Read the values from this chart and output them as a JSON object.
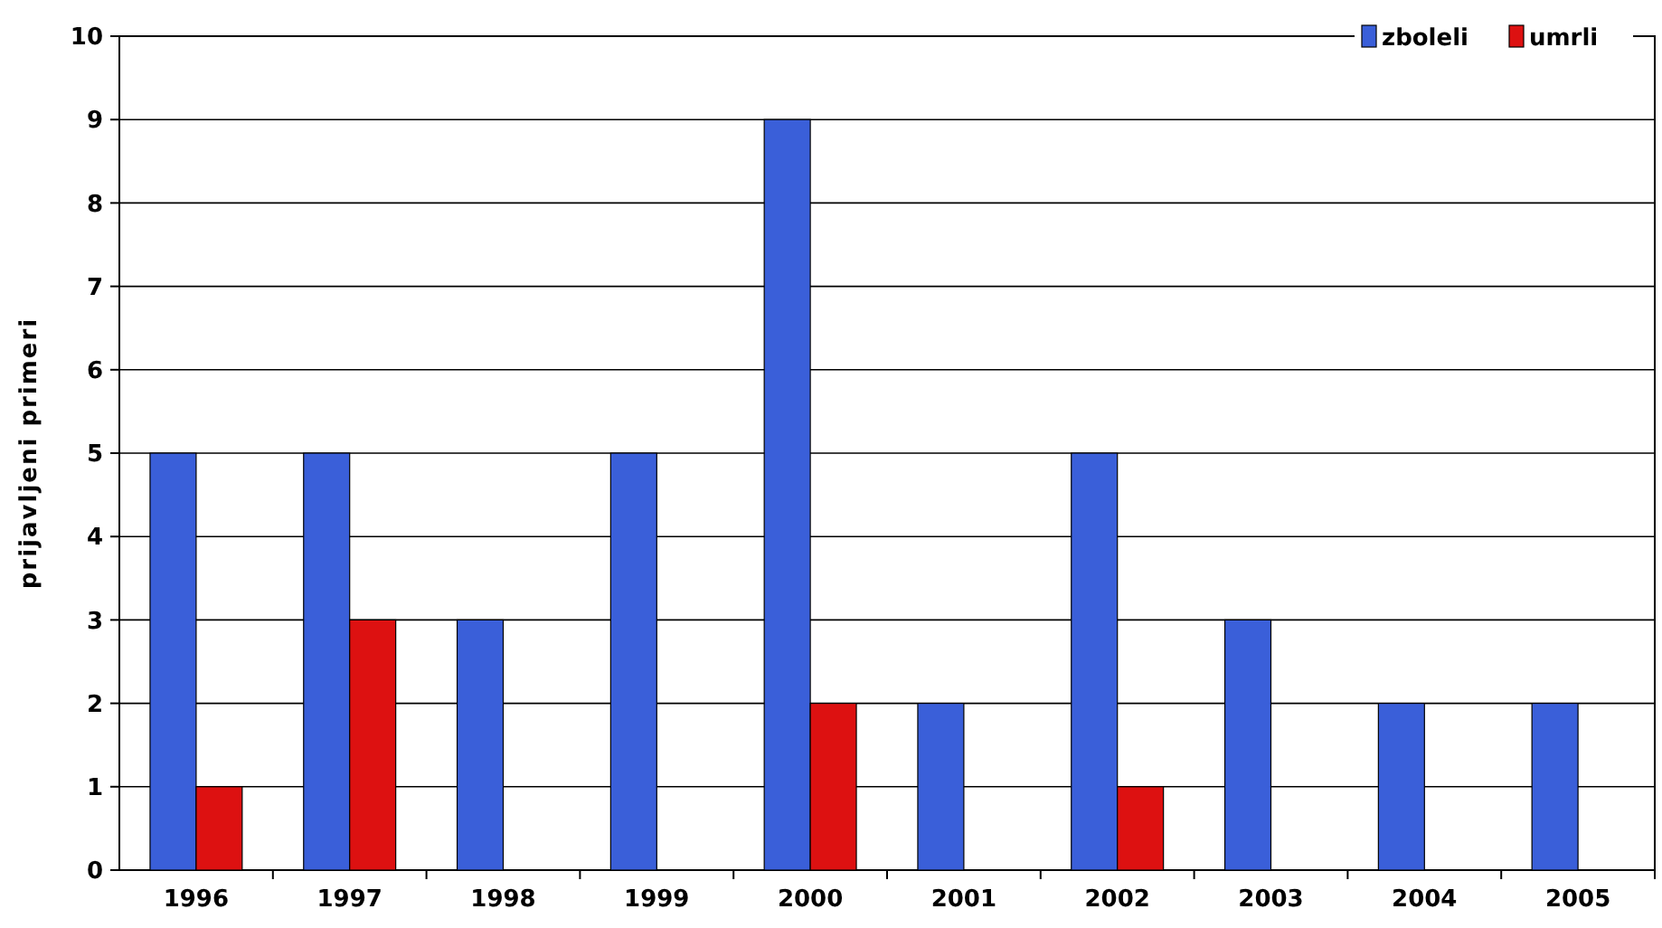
{
  "chart_data": {
    "type": "bar",
    "ylabel": "prijavljeni primeri",
    "categories": [
      "1996",
      "1997",
      "1998",
      "1999",
      "2000",
      "2001",
      "2002",
      "2003",
      "2004",
      "2005"
    ],
    "series": [
      {
        "name": "zboleli",
        "color": "#3a5fd9",
        "values": [
          5,
          5,
          3,
          5,
          9,
          2,
          5,
          3,
          2,
          2
        ]
      },
      {
        "name": "umrli",
        "color": "#dd1111",
        "values": [
          1,
          3,
          null,
          null,
          2,
          null,
          1,
          null,
          null,
          null
        ]
      }
    ],
    "ylim": [
      0,
      10
    ],
    "yticks": [
      0,
      1,
      2,
      3,
      4,
      5,
      6,
      7,
      8,
      9,
      10
    ],
    "grid": "y",
    "legend": "top right"
  }
}
